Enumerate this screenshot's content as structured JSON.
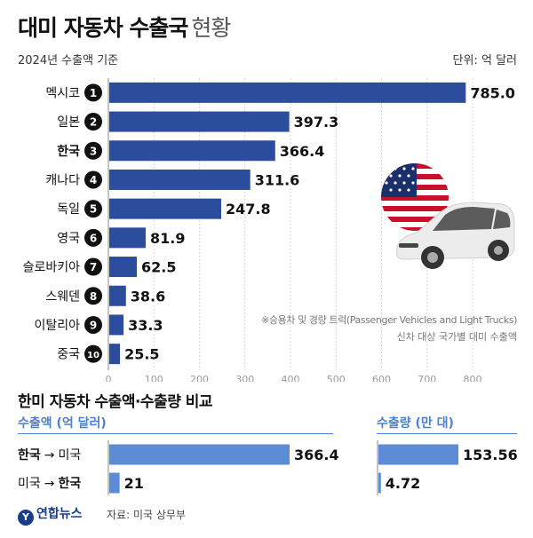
{
  "header": {
    "title_bold": "대미 자동차 수출국",
    "title_light": "현황",
    "basis": "2024년 수출액 기준",
    "unit": "단위: 억 달러"
  },
  "chart_data": [
    {
      "type": "bar",
      "orientation": "horizontal",
      "categories": [
        "멕시코",
        "일본",
        "한국",
        "캐나다",
        "독일",
        "영국",
        "슬로바키아",
        "스웨덴",
        "이탈리아",
        "중국"
      ],
      "ranks": [
        "1",
        "2",
        "3",
        "4",
        "5",
        "6",
        "7",
        "8",
        "9",
        "10"
      ],
      "values": [
        785.0,
        397.3,
        366.4,
        311.6,
        247.8,
        81.9,
        62.5,
        38.6,
        33.3,
        25.5
      ],
      "value_labels": [
        "785.0",
        "397.3",
        "366.4",
        "311.6",
        "247.8",
        "81.9",
        "62.5",
        "38.6",
        "33.3",
        "25.5"
      ],
      "highlight": "한국",
      "xlim": [
        0,
        800
      ],
      "xticks": [
        "0",
        "100",
        "200",
        "300",
        "400",
        "500",
        "600",
        "700",
        "800"
      ],
      "bar_color": "#2c4d9e",
      "grid": true
    },
    {
      "type": "bar",
      "orientation": "horizontal",
      "title": "수출액 (억 달러)",
      "categories": [
        "한국 → 미국",
        "미국 → 한국"
      ],
      "values": [
        366.4,
        21
      ],
      "value_labels": [
        "366.4",
        "21"
      ],
      "xlim": [
        0,
        400
      ],
      "bar_color": "#5e8bd6"
    },
    {
      "type": "bar",
      "orientation": "horizontal",
      "title": "수출량 (만 대)",
      "values": [
        153.56,
        4.72
      ],
      "value_labels": [
        "153.56",
        "4.72"
      ],
      "xlim": [
        0,
        170
      ],
      "bar_color": "#5e8bd6"
    }
  ],
  "notes": {
    "line1": "※승용차 및 경량 트럭(Passenger Vehicles and Light Trucks)",
    "line2": "신차 대상 국가별 대미 수출액"
  },
  "comparison": {
    "section_title": "한미 자동차 수출액·수출량 비교",
    "amount_label": "수출액 (억 달러)",
    "volume_label": "수출량 (만 대)",
    "rows": [
      {
        "from": "한국",
        "to": "미국",
        "from_bold": true
      },
      {
        "from": "미국",
        "to": "한국",
        "from_bold": false
      }
    ],
    "arrow": "→"
  },
  "footer": {
    "logo": "연합뉴스",
    "source": "자료: 미국 상무부"
  },
  "colors": {
    "main_bar": "#2c4d9e",
    "compare_bar": "#5e8bd6",
    "accent": "#4a7fd1"
  },
  "illustration": {
    "name": "usa-flag-car-illustration"
  }
}
